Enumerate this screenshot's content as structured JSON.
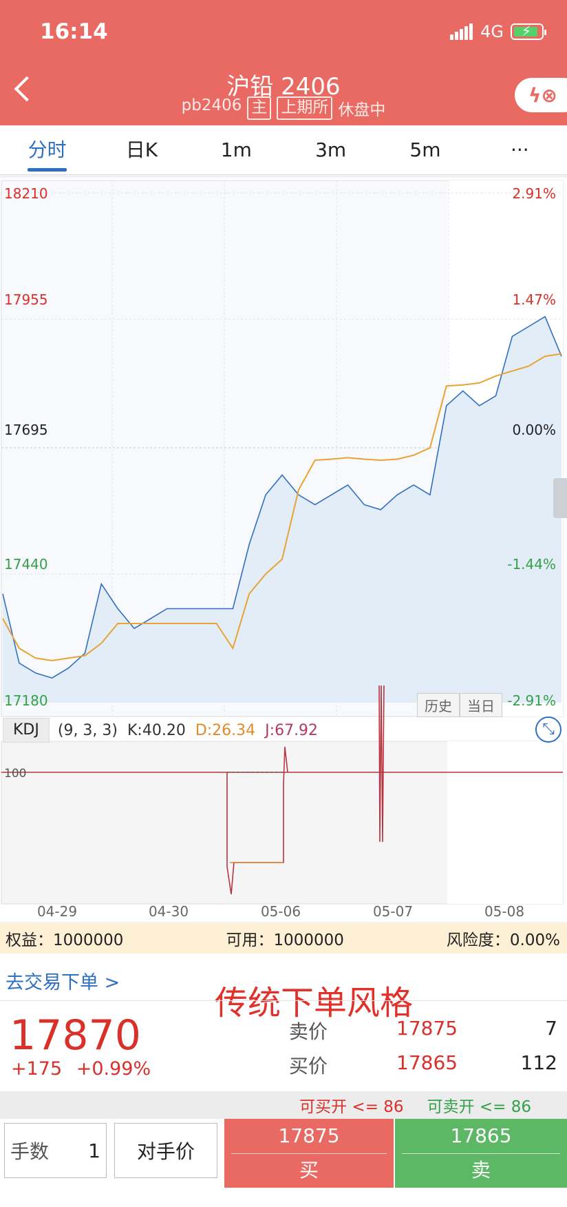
{
  "status": {
    "time": "16:14",
    "network": "4G",
    "signal_icon": "signal-bars-icon",
    "battery_icon": "battery-charging-icon"
  },
  "header": {
    "title": "沪铅 2406",
    "code": "pb2406",
    "main_tag": "主",
    "exchange_tag": "上期所",
    "session_status": "休盘中",
    "back_icon": "chevron-left-icon",
    "flash_icon": "flash-order-icon"
  },
  "tabs": [
    {
      "label": "分时"
    },
    {
      "label": "日K"
    },
    {
      "label": "1m"
    },
    {
      "label": "3m"
    },
    {
      "label": "5m"
    },
    {
      "label": "···"
    }
  ],
  "price_axis": {
    "left_labels": [
      "18210",
      "17955",
      "17695",
      "17440",
      "17180"
    ],
    "right_labels": [
      "2.91%",
      "1.47%",
      "0.00%",
      "-1.44%",
      "-2.91%"
    ],
    "date_labels": [
      "04-29",
      "04-30",
      "05-06",
      "05-07",
      "05-08"
    ]
  },
  "history_buttons": {
    "history": "历史",
    "today": "当日"
  },
  "kdj": {
    "name": "KDJ",
    "params": "(9, 3, 3)",
    "k": "K:40.20",
    "d": "D:26.34",
    "j": "J:67.92",
    "axis_label": "100"
  },
  "account": {
    "equity": "权益：1000000",
    "available": "可用：1000000",
    "risk": "风险度：0.00%"
  },
  "trade": {
    "go_trade": "去交易下单 >",
    "style_label": "传统下单风格",
    "last_price": "17870",
    "change": "+175   +0.99%",
    "ask_label": "卖价",
    "ask_price": "17875",
    "ask_volume": "7",
    "bid_label": "买价",
    "bid_price": "17865",
    "bid_volume": "112",
    "can_buy_open": "可买开 <= 86",
    "can_sell_open": "可卖开 <= 86",
    "qty_label": "手数",
    "qty_value": "1",
    "price_mode": "对手价",
    "buy_price": "17875",
    "buy_label": "买",
    "sell_price": "17865",
    "sell_label": "卖"
  },
  "colors": {
    "header": "#e86a63",
    "active_tab": "#2f6fc2",
    "up": "#d9302a",
    "down": "#35a04a",
    "price_line": "#2f6fc2",
    "avg_line": "#e8a334"
  },
  "chart_data": {
    "type": "line",
    "x_labels": [
      "04-29",
      "04-30",
      "05-06",
      "05-07",
      "05-08"
    ],
    "reference_price": 17695,
    "ylim": [
      17180,
      18210
    ],
    "series": [
      {
        "values": [
          17400,
          17260,
          17240,
          17230,
          17250,
          17280,
          17420,
          17370,
          17330,
          17350,
          17370,
          17370,
          17370,
          17370,
          17370,
          17500,
          17600,
          17640,
          17600,
          17580,
          17600,
          17620,
          17580,
          17570,
          17600,
          17620,
          17600,
          17780,
          17810,
          17780,
          17800,
          17920,
          17940,
          17960,
          17880
        ]
      },
      {
        "values": [
          17350,
          17290,
          17270,
          17265,
          17270,
          17275,
          17300,
          17340,
          17340,
          17340,
          17340,
          17340,
          17340,
          17340,
          17290,
          17400,
          17440,
          17470,
          17610,
          17670,
          17672,
          17675,
          17672,
          17670,
          17672,
          17680,
          17695,
          17820,
          17822,
          17826,
          17840,
          17850,
          17860,
          17880,
          17885
        ]
      }
    ]
  }
}
